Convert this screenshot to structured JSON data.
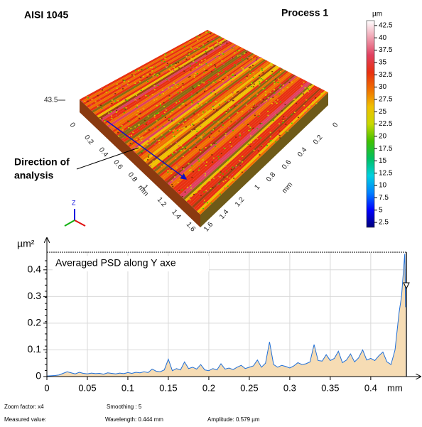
{
  "chart_data": [
    {
      "type": "surface",
      "title": "Process 1",
      "material": "AISI 1045",
      "zmax": 43.5,
      "annotation": [
        "Direction of",
        "analysis"
      ],
      "colorbar": {
        "unit": "µm",
        "clim": [
          1.5,
          43.5
        ],
        "ticks": [
          2.5,
          5,
          7.5,
          10,
          12.5,
          15,
          17.5,
          20,
          22.5,
          25,
          27.5,
          30,
          32.5,
          35,
          37.5,
          40,
          42.5
        ],
        "colormap": [
          "#00007a",
          "#0000ff",
          "#0080ff",
          "#00d0e0",
          "#00c060",
          "#40c000",
          "#c8d800",
          "#f0c000",
          "#f07000",
          "#e83010",
          "#e04060",
          "#f0a0b0",
          "#ffffff"
        ]
      },
      "x_axis": {
        "ticks": [
          0,
          0.2,
          0.4,
          0.6,
          0.8,
          1,
          1.2,
          1.4,
          1.6
        ],
        "label": "mm"
      },
      "y_axis": {
        "ticks": [
          0,
          0.2,
          0.4,
          0.6,
          0.8,
          1,
          1.2,
          1.4,
          1.6
        ],
        "label": "mm"
      },
      "axis_icon": "Z"
    },
    {
      "type": "area",
      "title": "Averaged PSD along Y axe",
      "ylabel": "µm²",
      "xlabel": "mm",
      "line_color": "#1f6fd8",
      "fill_color": "#f6dcb4",
      "grid": true,
      "xlim": [
        0,
        0.444
      ],
      "ylim": [
        0,
        0.466
      ],
      "xticks": [
        0,
        0.05,
        0.1,
        0.15,
        0.2,
        0.25,
        0.3,
        0.35,
        0.4
      ],
      "yticks": [
        0,
        0.1,
        0.2,
        0.3,
        0.4
      ],
      "x": [
        0,
        0.005,
        0.01,
        0.015,
        0.02,
        0.025,
        0.03,
        0.035,
        0.04,
        0.045,
        0.05,
        0.055,
        0.06,
        0.065,
        0.07,
        0.075,
        0.08,
        0.085,
        0.09,
        0.095,
        0.1,
        0.105,
        0.11,
        0.115,
        0.12,
        0.125,
        0.13,
        0.135,
        0.14,
        0.145,
        0.15,
        0.155,
        0.16,
        0.165,
        0.17,
        0.175,
        0.18,
        0.185,
        0.19,
        0.195,
        0.2,
        0.205,
        0.21,
        0.215,
        0.22,
        0.225,
        0.23,
        0.235,
        0.24,
        0.245,
        0.25,
        0.255,
        0.26,
        0.265,
        0.27,
        0.275,
        0.28,
        0.285,
        0.29,
        0.295,
        0.3,
        0.305,
        0.31,
        0.315,
        0.32,
        0.325,
        0.33,
        0.335,
        0.34,
        0.345,
        0.35,
        0.355,
        0.36,
        0.365,
        0.37,
        0.375,
        0.38,
        0.385,
        0.39,
        0.395,
        0.4,
        0.405,
        0.41,
        0.415,
        0.42,
        0.425,
        0.43,
        0.435,
        0.438,
        0.44,
        0.442,
        0.443
      ],
      "values": [
        0.002,
        0.003,
        0.004,
        0.006,
        0.012,
        0.018,
        0.014,
        0.01,
        0.016,
        0.012,
        0.01,
        0.013,
        0.011,
        0.012,
        0.009,
        0.014,
        0.012,
        0.01,
        0.013,
        0.011,
        0.015,
        0.012,
        0.016,
        0.014,
        0.018,
        0.015,
        0.028,
        0.02,
        0.018,
        0.025,
        0.065,
        0.022,
        0.03,
        0.025,
        0.055,
        0.03,
        0.035,
        0.028,
        0.045,
        0.025,
        0.022,
        0.03,
        0.025,
        0.048,
        0.028,
        0.032,
        0.026,
        0.035,
        0.042,
        0.03,
        0.035,
        0.04,
        0.062,
        0.035,
        0.05,
        0.13,
        0.045,
        0.035,
        0.042,
        0.038,
        0.032,
        0.04,
        0.052,
        0.045,
        0.048,
        0.055,
        0.12,
        0.06,
        0.058,
        0.082,
        0.06,
        0.068,
        0.095,
        0.052,
        0.062,
        0.085,
        0.055,
        0.07,
        0.1,
        0.062,
        0.068,
        0.06,
        0.078,
        0.092,
        0.055,
        0.045,
        0.1,
        0.24,
        0.3,
        0.38,
        0.46,
        0.26
      ]
    }
  ],
  "footer": {
    "zoom": "Zoom factor: x4",
    "smoothing": "Smoothing : 5",
    "measured": "Measured value:",
    "wavelength": "Wavelength: 0.444 mm",
    "amplitude": "Amplitude: 0.579 µm"
  }
}
